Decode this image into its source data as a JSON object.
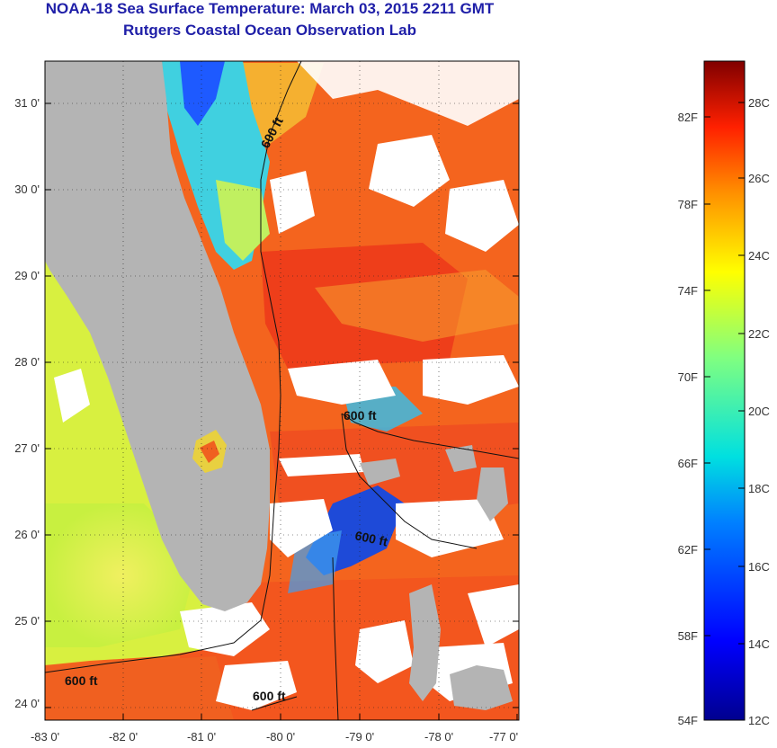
{
  "header": {
    "title": "NOAA-18 Sea Surface Temperature:  March 03, 2015 2211 GMT",
    "subtitle": "Rutgers Coastal Ocean Observation Lab"
  },
  "map": {
    "lon_ticks": [
      "-83 0'",
      "-82 0'",
      "-81 0'",
      "-80 0'",
      "-79 0'",
      "-78 0'",
      "-77 0'"
    ],
    "lat_ticks": [
      "31 0'",
      "30 0'",
      "29 0'",
      "28 0'",
      "27 0'",
      "26 0'",
      "25 0'",
      "24 0'"
    ],
    "contour_labels": [
      "600 ft",
      "600 ft",
      "600 ft",
      "600 ft"
    ],
    "colors": {
      "land": "#b4b4b4",
      "cloud": "#ffffff",
      "warm": "#f45a1e",
      "hot": "#e8321c",
      "cool": "#1e6bff",
      "cold": "#0a1aa0",
      "shelf": "#d8f040"
    }
  },
  "colorbar": {
    "fahrenheit": [
      "82F",
      "78F",
      "74F",
      "70F",
      "66F",
      "62F",
      "58F",
      "54F"
    ],
    "celsius": [
      "28C",
      "26C",
      "24C",
      "22C",
      "20C",
      "18C",
      "16C",
      "14C",
      "12C"
    ]
  }
}
